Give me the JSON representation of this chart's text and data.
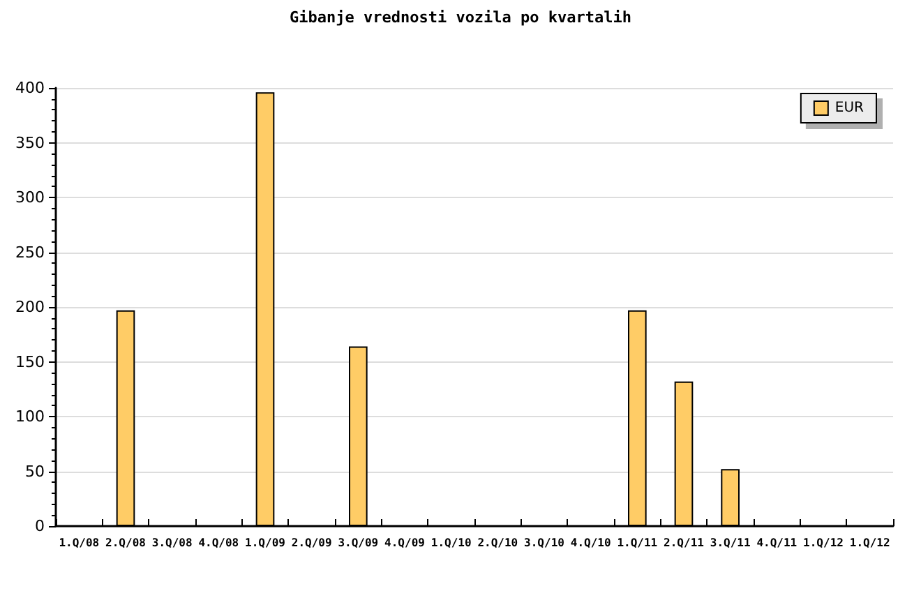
{
  "chart_data": {
    "type": "bar",
    "title": "Gibanje vrednosti vozila po kvartalih",
    "categories": [
      "1.Q/08",
      "2.Q/08",
      "3.Q/08",
      "4.Q/08",
      "1.Q/09",
      "2.Q/09",
      "3.Q/09",
      "4.Q/09",
      "1.Q/10",
      "2.Q/10",
      "3.Q/10",
      "4.Q/10",
      "1.Q/11",
      "2.Q/11",
      "3.Q/11",
      "4.Q/11",
      "1.Q/12",
      "1.Q/12"
    ],
    "series": [
      {
        "name": "EUR",
        "color": "#ffcc66",
        "values": [
          0,
          197,
          0,
          0,
          396,
          0,
          164,
          0,
          0,
          0,
          0,
          0,
          197,
          132,
          52,
          0,
          0,
          0
        ]
      }
    ],
    "ylim": [
      0,
      400
    ],
    "yticks": [
      0,
      50,
      100,
      150,
      200,
      250,
      300,
      350,
      400
    ],
    "grid": "y",
    "legend": "top right"
  }
}
